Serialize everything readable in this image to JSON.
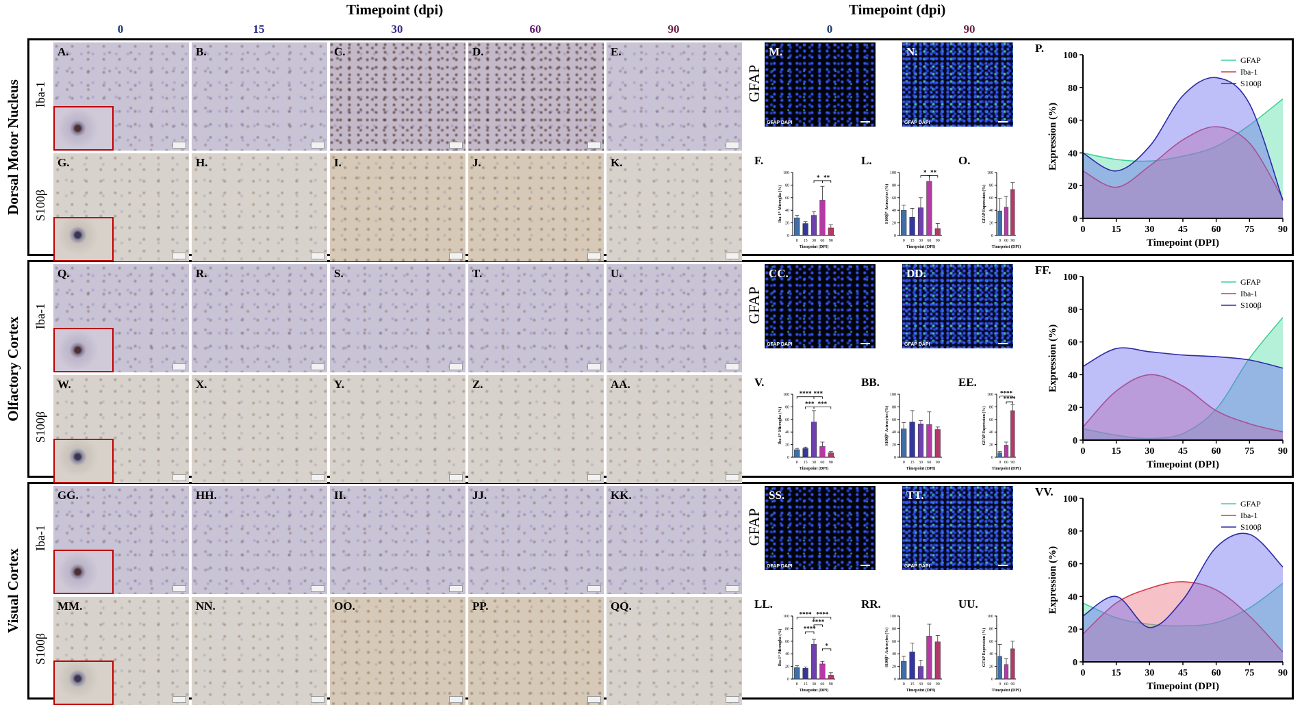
{
  "header": {
    "ihc_title": "Timepoint (dpi)",
    "if_title": "Timepoint (dpi)",
    "ihc_timepoints": [
      "0",
      "15",
      "30",
      "60",
      "90"
    ],
    "if_timepoints": [
      "0",
      "90"
    ],
    "timepoint_colors": [
      "#1f3a6e",
      "#2d2a8c",
      "#3e2a86",
      "#5e1f72",
      "#6b1f44"
    ]
  },
  "sections": [
    {
      "region": "Dorsal Motor Nucleus",
      "row1_stain": "Iba-1",
      "row2_stain": "S100β",
      "row1_panels": [
        "A.",
        "B.",
        "C.",
        "D.",
        "E."
      ],
      "row2_panels": [
        "G.",
        "H.",
        "I.",
        "J.",
        "K."
      ],
      "if_stain": "GFAP",
      "if_panels": [
        "M.",
        "N."
      ],
      "if_caption": "GFAP DAPI",
      "bar_panels": [
        "F.",
        "L.",
        "O."
      ],
      "line_panel": "P."
    },
    {
      "region": "Olfactory Cortex",
      "row1_stain": "Iba-1",
      "row2_stain": "S100β",
      "row1_panels": [
        "Q.",
        "R.",
        "S.",
        "T.",
        "U."
      ],
      "row2_panels": [
        "W.",
        "X.",
        "Y.",
        "Z.",
        "AA."
      ],
      "if_stain": "GFAP",
      "if_panels": [
        "CC.",
        "DD."
      ],
      "if_caption": "GFAP DAPI",
      "bar_panels": [
        "V.",
        "BB.",
        "EE."
      ],
      "line_panel": "FF."
    },
    {
      "region": "Visual Cortex",
      "row1_stain": "Iba-1",
      "row2_stain": "S100β",
      "row1_panels": [
        "GG.",
        "HH.",
        "II.",
        "JJ.",
        "KK."
      ],
      "row2_panels": [
        "MM.",
        "NN.",
        "OO.",
        "PP.",
        "QQ."
      ],
      "if_stain": "GFAP",
      "if_panels": [
        "SS.",
        "TT."
      ],
      "if_caption": "GFAP DAPI",
      "bar_panels": [
        "LL.",
        "RR.",
        "UU."
      ],
      "line_panel": "VV."
    }
  ],
  "chart_data": [
    {
      "panel": "F.",
      "type": "bar",
      "categories": [
        "0",
        "15",
        "30",
        "60",
        "90"
      ],
      "values": [
        28,
        19,
        32,
        56,
        12
      ],
      "errors": [
        4,
        3,
        6,
        22,
        5
      ],
      "ylabel": "Iba-1⁺ Microglia (%)",
      "xlabel": "Timepoint (DPI)",
      "ylim": [
        0,
        100
      ],
      "yticks": [
        0,
        20,
        40,
        60,
        80,
        100
      ],
      "colors": [
        "#3f6fa8",
        "#34379a",
        "#6f3fae",
        "#b63aa6",
        "#b23a6a"
      ],
      "significance": [
        {
          "from": 2,
          "to": 3,
          "label": "*",
          "level": 87
        },
        {
          "from": 3,
          "to": 4,
          "label": "**",
          "level": 87
        }
      ]
    },
    {
      "panel": "L.",
      "type": "bar",
      "categories": [
        "0",
        "15",
        "30",
        "60",
        "90"
      ],
      "values": [
        40,
        29,
        44,
        86,
        11
      ],
      "errors": [
        8,
        14,
        16,
        9,
        8
      ],
      "ylabel": "S100β⁺ Astrocytes (%)",
      "xlabel": "Timepoint (DPI)",
      "ylim": [
        0,
        100
      ],
      "yticks": [
        0,
        20,
        40,
        60,
        80,
        100
      ],
      "colors": [
        "#3f6fa8",
        "#34379a",
        "#6f3fae",
        "#b63aa6",
        "#b23a6a"
      ],
      "significance": [
        {
          "from": 2,
          "to": 3,
          "label": "*",
          "level": 95
        },
        {
          "from": 3,
          "to": 4,
          "label": "**",
          "level": 95
        }
      ]
    },
    {
      "panel": "O.",
      "type": "bar",
      "categories": [
        "0",
        "60",
        "90"
      ],
      "values": [
        39,
        45,
        73
      ],
      "errors": [
        20,
        17,
        11
      ],
      "ylabel": "GFAP Expression (%)",
      "xlabel": "Timepoint (DPI)",
      "ylim": [
        0,
        100
      ],
      "yticks": [
        0,
        20,
        40,
        60,
        80,
        100
      ],
      "colors": [
        "#3f6fa8",
        "#b63aa6",
        "#b23a6a"
      ],
      "significance": []
    },
    {
      "panel": "P.",
      "type": "area",
      "x": [
        0,
        15,
        30,
        45,
        60,
        75,
        90
      ],
      "series": [
        {
          "name": "GFAP",
          "values": [
            40,
            36,
            35,
            38,
            44,
            57,
            73
          ],
          "color": "#3fcf9b"
        },
        {
          "name": "Iba-1",
          "values": [
            29,
            19,
            32,
            48,
            56,
            46,
            12
          ],
          "color": "#d43a4a"
        },
        {
          "name": "S100β",
          "values": [
            40,
            29,
            44,
            75,
            86,
            70,
            11
          ],
          "color": "#2b2aa6"
        }
      ],
      "xlabel": "Timepoint (DPI)",
      "ylabel": "Expression (%)",
      "xticks": [
        0,
        15,
        30,
        45,
        60,
        75,
        90
      ],
      "yticks": [
        0,
        20,
        40,
        60,
        80,
        100
      ],
      "ylim": [
        0,
        100
      ],
      "legend": "top-right"
    },
    {
      "panel": "V.",
      "type": "bar",
      "categories": [
        "0",
        "15",
        "30",
        "60",
        "90"
      ],
      "values": [
        12,
        14,
        56,
        17,
        7
      ],
      "errors": [
        2,
        2,
        18,
        7,
        2
      ],
      "ylabel": "Iba-1⁺ Microglia (%)",
      "xlabel": "Timepoint (DPI)",
      "ylim": [
        0,
        100
      ],
      "yticks": [
        0,
        20,
        40,
        60,
        80,
        100
      ],
      "colors": [
        "#3f6fa8",
        "#34379a",
        "#6f3fae",
        "#b63aa6",
        "#b23a6a"
      ],
      "significance": [
        {
          "from": 0,
          "to": 2,
          "label": "****",
          "level": 96
        },
        {
          "from": 2,
          "to": 3,
          "label": "***",
          "level": 96
        },
        {
          "from": 1,
          "to": 2,
          "label": "***",
          "level": 80
        },
        {
          "from": 2,
          "to": 4,
          "label": "***",
          "level": 80
        }
      ]
    },
    {
      "panel": "BB.",
      "type": "bar",
      "categories": [
        "0",
        "15",
        "30",
        "60",
        "90"
      ],
      "values": [
        45,
        56,
        53,
        52,
        44
      ],
      "errors": [
        10,
        18,
        5,
        20,
        4
      ],
      "ylabel": "S100β⁺ Astrocytes (%)",
      "xlabel": "Timepoint (DPI)",
      "ylim": [
        0,
        100
      ],
      "yticks": [
        0,
        20,
        40,
        60,
        80,
        100
      ],
      "colors": [
        "#3f6fa8",
        "#34379a",
        "#6f3fae",
        "#b63aa6",
        "#b23a6a"
      ],
      "significance": []
    },
    {
      "panel": "EE.",
      "type": "bar",
      "categories": [
        "0",
        "60",
        "90"
      ],
      "values": [
        7,
        19,
        74
      ],
      "errors": [
        2,
        5,
        10
      ],
      "ylabel": "GFAP Expression (%)",
      "xlabel": "Timepoint (DPI)",
      "ylim": [
        0,
        100
      ],
      "yticks": [
        0,
        20,
        40,
        60,
        80,
        100
      ],
      "colors": [
        "#3f6fa8",
        "#b63aa6",
        "#b23a6a"
      ],
      "significance": [
        {
          "from": 0,
          "to": 2,
          "label": "****",
          "level": 97
        },
        {
          "from": 1,
          "to": 2,
          "label": "****",
          "level": 88
        }
      ]
    },
    {
      "panel": "FF.",
      "type": "area",
      "x": [
        0,
        15,
        30,
        45,
        60,
        75,
        90
      ],
      "series": [
        {
          "name": "GFAP",
          "values": [
            7,
            3,
            1,
            4,
            19,
            50,
            75
          ],
          "color": "#3fcf9b"
        },
        {
          "name": "Iba-1",
          "values": [
            8,
            30,
            40,
            33,
            18,
            10,
            5
          ],
          "color": "#d43a4a"
        },
        {
          "name": "S100β",
          "values": [
            45,
            56,
            54,
            52,
            51,
            49,
            44
          ],
          "color": "#2b2aa6"
        }
      ],
      "xlabel": "Timepoint (DPI)",
      "ylabel": "Expression (%)",
      "xticks": [
        0,
        15,
        30,
        45,
        60,
        75,
        90
      ],
      "yticks": [
        0,
        20,
        40,
        60,
        80,
        100
      ],
      "ylim": [
        0,
        100
      ],
      "legend": "top-right"
    },
    {
      "panel": "LL.",
      "type": "bar",
      "categories": [
        "0",
        "15",
        "30",
        "60",
        "90"
      ],
      "values": [
        18,
        17,
        55,
        24,
        6
      ],
      "errors": [
        3,
        2,
        8,
        4,
        4
      ],
      "ylabel": "Iba-1⁺ Microglia (%)",
      "xlabel": "Timepoint (DPI)",
      "ylim": [
        0,
        100
      ],
      "yticks": [
        0,
        20,
        40,
        60,
        80,
        100
      ],
      "colors": [
        "#3f6fa8",
        "#34379a",
        "#6f3fae",
        "#b63aa6",
        "#b23a6a"
      ],
      "significance": [
        {
          "from": 0,
          "to": 2,
          "label": "****",
          "level": 98
        },
        {
          "from": 2,
          "to": 4,
          "label": "****",
          "level": 98
        },
        {
          "from": 2,
          "to": 3,
          "label": "****",
          "level": 86
        },
        {
          "from": 1,
          "to": 2,
          "label": "****",
          "level": 75
        },
        {
          "from": 3,
          "to": 4,
          "label": "*",
          "level": 48
        }
      ]
    },
    {
      "panel": "RR.",
      "type": "bar",
      "categories": [
        "0",
        "15",
        "30",
        "60",
        "90"
      ],
      "values": [
        28,
        43,
        20,
        68,
        59
      ],
      "errors": [
        8,
        14,
        10,
        19,
        10
      ],
      "ylabel": "S100β⁺ Astrocytes (%)",
      "xlabel": "Timepoint (DPI)",
      "ylim": [
        0,
        100
      ],
      "yticks": [
        0,
        20,
        40,
        60,
        80,
        100
      ],
      "colors": [
        "#3f6fa8",
        "#34379a",
        "#6f3fae",
        "#b63aa6",
        "#b23a6a"
      ],
      "significance": []
    },
    {
      "panel": "UU.",
      "type": "bar",
      "categories": [
        "0",
        "60",
        "90"
      ],
      "values": [
        36,
        23,
        48
      ],
      "errors": [
        19,
        9,
        12
      ],
      "ylabel": "GFAP Expression (%)",
      "xlabel": "Timepoint (DPI)",
      "ylim": [
        0,
        100
      ],
      "yticks": [
        0,
        20,
        40,
        60,
        80,
        100
      ],
      "colors": [
        "#3f6fa8",
        "#b63aa6",
        "#b23a6a"
      ],
      "significance": []
    },
    {
      "panel": "VV.",
      "type": "area",
      "x": [
        0,
        15,
        30,
        45,
        60,
        75,
        90
      ],
      "series": [
        {
          "name": "GFAP",
          "values": [
            36,
            27,
            23,
            22,
            24,
            33,
            48
          ],
          "color": "#3fcf9b"
        },
        {
          "name": "Iba-1",
          "values": [
            17,
            36,
            45,
            49,
            44,
            28,
            6
          ],
          "color": "#d43a4a"
        },
        {
          "name": "S100β",
          "values": [
            28,
            40,
            21,
            38,
            70,
            78,
            58
          ],
          "color": "#2b2aa6"
        }
      ],
      "xlabel": "Timepoint (DPI)",
      "ylabel": "Expression (%)",
      "xticks": [
        0,
        15,
        30,
        45,
        60,
        75,
        90
      ],
      "yticks": [
        0,
        20,
        40,
        60,
        80,
        100
      ],
      "ylim": [
        0,
        100
      ],
      "legend": "top-right"
    }
  ]
}
